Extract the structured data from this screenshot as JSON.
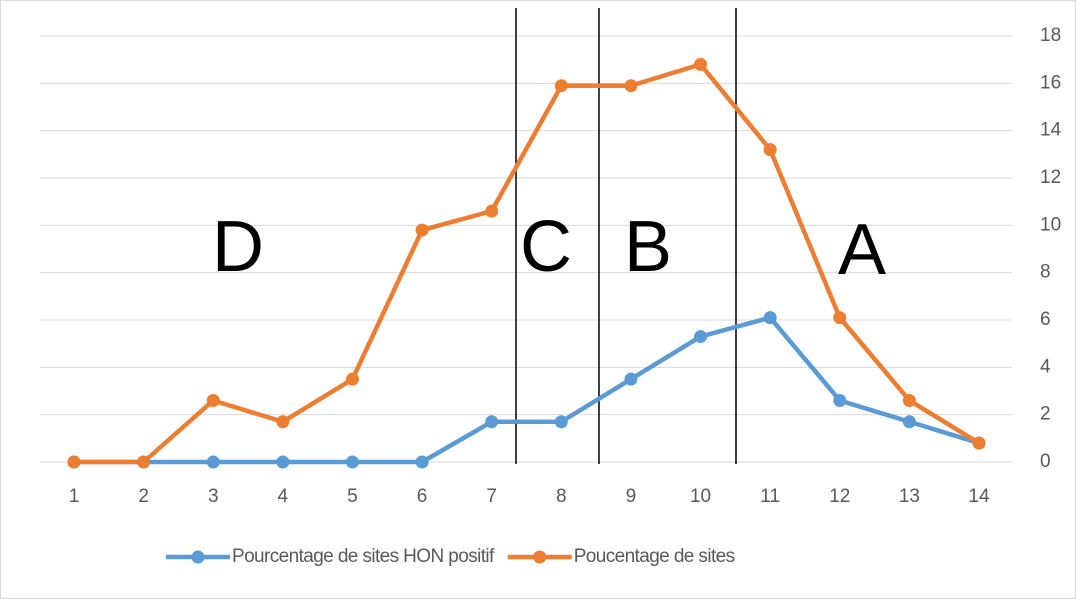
{
  "chart_data": {
    "type": "line",
    "categories": [
      "1",
      "2",
      "3",
      "4",
      "5",
      "6",
      "7",
      "8",
      "9",
      "10",
      "11",
      "12",
      "13",
      "14"
    ],
    "series": [
      {
        "name": "Pourcentage de sites HON positif",
        "color": "#5b9bd5",
        "values": [
          0,
          0,
          0,
          0,
          0,
          0,
          1.7,
          1.7,
          3.5,
          5.3,
          6.1,
          2.6,
          1.7,
          0.8
        ]
      },
      {
        "name": "Poucentage de sites",
        "color": "#ed7d31",
        "values": [
          0,
          0,
          2.6,
          1.7,
          3.5,
          9.8,
          10.6,
          15.9,
          15.9,
          16.8,
          13.2,
          6.1,
          2.6,
          0.8
        ]
      }
    ],
    "ylim": [
      0,
      18
    ],
    "yticks": [
      0,
      2,
      4,
      6,
      8,
      10,
      12,
      14,
      16,
      18
    ],
    "y_axis_side": "right",
    "grid": true,
    "annotations": [
      "D",
      "C",
      "B",
      "A"
    ],
    "legend": "bottom"
  }
}
